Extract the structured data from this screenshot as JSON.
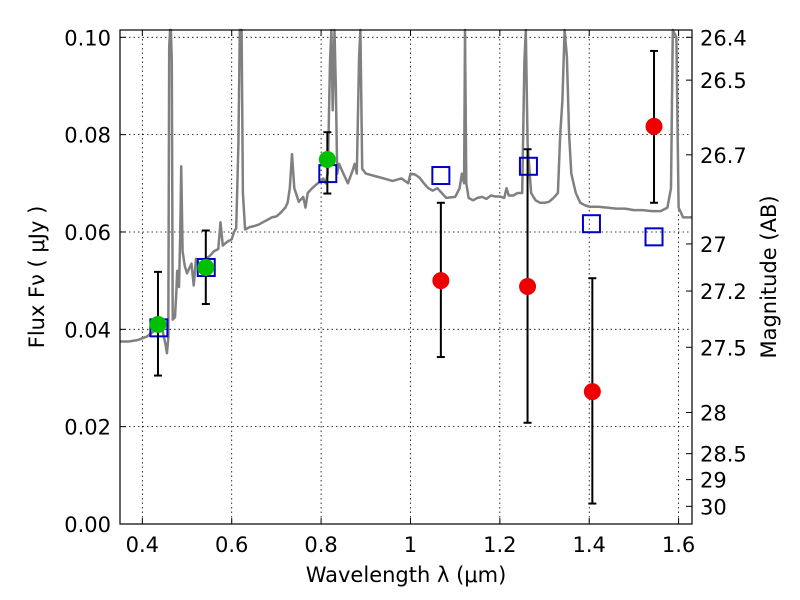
{
  "chart_data": {
    "type": "scatter",
    "xlabel": "Wavelength  λ (μm)",
    "ylabel": "Flux  Fν  ( μJy )",
    "y2label": "Magnitude (AB)",
    "xlim": [
      0.35,
      1.63
    ],
    "ylim": [
      0.0,
      0.1015
    ],
    "grid": true,
    "x_ticks": [
      0.4,
      0.6,
      0.8,
      1.0,
      1.2,
      1.4,
      1.6
    ],
    "x_tick_labels": [
      "0.4",
      "0.6",
      "0.8",
      "1",
      "1.2",
      "1.4",
      "1.6"
    ],
    "y_ticks": [
      0.0,
      0.02,
      0.04,
      0.06,
      0.08,
      0.1
    ],
    "y_tick_labels": [
      "0.00",
      "0.02",
      "0.04",
      "0.06",
      "0.08",
      "0.10"
    ],
    "y2_tick_values": [
      26.4,
      26.5,
      26.7,
      27,
      27.2,
      27.5,
      28,
      28.5,
      29,
      30
    ],
    "y2_tick_labels": [
      "26.4",
      "26.5",
      "26.7",
      "27",
      "27.2",
      "27.5",
      "28",
      "28.5",
      "29",
      "30"
    ],
    "colors": {
      "spectrum": "#808080",
      "detections": "#00c000",
      "upper_points": "#ee0000",
      "model_boxes": "#0000cc",
      "errorbars": "#000000"
    },
    "series": [
      {
        "kind": "line",
        "points": [
          [
            0.35,
            0.0375
          ],
          [
            0.37,
            0.0375
          ],
          [
            0.39,
            0.0378
          ],
          [
            0.41,
            0.0385
          ],
          [
            0.42,
            0.0392
          ],
          [
            0.43,
            0.04
          ],
          [
            0.44,
            0.0402
          ],
          [
            0.445,
            0.0398
          ],
          [
            0.452,
            0.0368
          ],
          [
            0.455,
            0.0351
          ],
          [
            0.458,
            0.0382
          ],
          [
            0.46,
            0.098
          ],
          [
            0.462,
            0.1015
          ],
          [
            0.464,
            0.1015
          ],
          [
            0.466,
            0.095
          ],
          [
            0.468,
            0.042
          ],
          [
            0.473,
            0.0425
          ],
          [
            0.476,
            0.0475
          ],
          [
            0.478,
            0.052
          ],
          [
            0.482,
            0.0487
          ],
          [
            0.485,
            0.06
          ],
          [
            0.487,
            0.0735
          ],
          [
            0.49,
            0.056
          ],
          [
            0.495,
            0.053
          ],
          [
            0.5,
            0.0515
          ],
          [
            0.51,
            0.0535
          ],
          [
            0.515,
            0.049
          ],
          [
            0.52,
            0.0545
          ],
          [
            0.53,
            0.053
          ],
          [
            0.54,
            0.0545
          ],
          [
            0.55,
            0.055
          ],
          [
            0.56,
            0.056
          ],
          [
            0.57,
            0.0565
          ],
          [
            0.575,
            0.062
          ],
          [
            0.58,
            0.0572
          ],
          [
            0.59,
            0.058
          ],
          [
            0.6,
            0.0585
          ],
          [
            0.605,
            0.06
          ],
          [
            0.61,
            0.0608
          ],
          [
            0.615,
            0.078
          ],
          [
            0.618,
            0.1015
          ],
          [
            0.622,
            0.1015
          ],
          [
            0.625,
            0.068
          ],
          [
            0.63,
            0.0605
          ],
          [
            0.64,
            0.061
          ],
          [
            0.65,
            0.0612
          ],
          [
            0.66,
            0.0615
          ],
          [
            0.67,
            0.062
          ],
          [
            0.68,
            0.0625
          ],
          [
            0.69,
            0.063
          ],
          [
            0.7,
            0.0632
          ],
          [
            0.71,
            0.064
          ],
          [
            0.72,
            0.065
          ],
          [
            0.725,
            0.066
          ],
          [
            0.73,
            0.069
          ],
          [
            0.735,
            0.076
          ],
          [
            0.74,
            0.069
          ],
          [
            0.75,
            0.0662
          ],
          [
            0.76,
            0.0672
          ],
          [
            0.765,
            0.065
          ],
          [
            0.77,
            0.068
          ],
          [
            0.78,
            0.069
          ],
          [
            0.79,
            0.0698
          ],
          [
            0.8,
            0.0705
          ],
          [
            0.805,
            0.071
          ],
          [
            0.81,
            0.07
          ],
          [
            0.815,
            0.072
          ],
          [
            0.82,
            0.095
          ],
          [
            0.823,
            0.1015
          ],
          [
            0.826,
            0.085
          ],
          [
            0.83,
            0.1015
          ],
          [
            0.833,
            0.09
          ],
          [
            0.836,
            0.072
          ],
          [
            0.84,
            0.074
          ],
          [
            0.85,
            0.072
          ],
          [
            0.86,
            0.07
          ],
          [
            0.87,
            0.0725
          ],
          [
            0.875,
            0.074
          ],
          [
            0.88,
            0.072
          ],
          [
            0.885,
            0.096
          ],
          [
            0.888,
            0.1015
          ],
          [
            0.892,
            0.073
          ],
          [
            0.9,
            0.072
          ],
          [
            0.92,
            0.0715
          ],
          [
            0.94,
            0.071
          ],
          [
            0.96,
            0.0705
          ],
          [
            0.98,
            0.071
          ],
          [
            0.995,
            0.07
          ],
          [
            1.0,
            0.072
          ],
          [
            1.01,
            0.0718
          ],
          [
            1.02,
            0.0712
          ],
          [
            1.03,
            0.07
          ],
          [
            1.04,
            0.069
          ],
          [
            1.05,
            0.0685
          ],
          [
            1.06,
            0.069
          ],
          [
            1.07,
            0.068
          ],
          [
            1.08,
            0.067
          ],
          [
            1.1,
            0.0672
          ],
          [
            1.11,
            0.069
          ],
          [
            1.115,
            0.072
          ],
          [
            1.12,
            0.07
          ],
          [
            1.122,
            0.1015
          ],
          [
            1.125,
            0.07
          ],
          [
            1.13,
            0.067
          ],
          [
            1.14,
            0.0665
          ],
          [
            1.15,
            0.067
          ],
          [
            1.16,
            0.0672
          ],
          [
            1.17,
            0.0668
          ],
          [
            1.18,
            0.0675
          ],
          [
            1.19,
            0.0673
          ],
          [
            1.2,
            0.0673
          ],
          [
            1.21,
            0.067
          ],
          [
            1.215,
            0.069
          ],
          [
            1.22,
            0.0675
          ],
          [
            1.23,
            0.0675
          ],
          [
            1.24,
            0.068
          ],
          [
            1.25,
            0.068
          ],
          [
            1.255,
            0.095
          ],
          [
            1.258,
            0.1015
          ],
          [
            1.262,
            0.078
          ],
          [
            1.27,
            0.068
          ],
          [
            1.28,
            0.0665
          ],
          [
            1.29,
            0.066
          ],
          [
            1.3,
            0.066
          ],
          [
            1.31,
            0.0662
          ],
          [
            1.32,
            0.067
          ],
          [
            1.33,
            0.068
          ],
          [
            1.335,
            0.08
          ],
          [
            1.34,
            0.087
          ],
          [
            1.345,
            0.1015
          ],
          [
            1.35,
            0.096
          ],
          [
            1.355,
            0.08
          ],
          [
            1.36,
            0.072
          ],
          [
            1.37,
            0.068
          ],
          [
            1.38,
            0.066
          ],
          [
            1.39,
            0.0655
          ],
          [
            1.4,
            0.0652
          ],
          [
            1.42,
            0.0652
          ],
          [
            1.44,
            0.065
          ],
          [
            1.46,
            0.0648
          ],
          [
            1.48,
            0.0648
          ],
          [
            1.5,
            0.0645
          ],
          [
            1.52,
            0.0645
          ],
          [
            1.54,
            0.0643
          ],
          [
            1.56,
            0.0643
          ],
          [
            1.575,
            0.065
          ],
          [
            1.583,
            0.069
          ],
          [
            1.587,
            0.1015
          ],
          [
            1.595,
            0.1
          ],
          [
            1.6,
            0.065
          ],
          [
            1.61,
            0.063
          ],
          [
            1.63,
            0.063
          ]
        ]
      },
      {
        "kind": "points",
        "points": [
          {
            "x": 0.435,
            "y": 0.041,
            "ylo": 0.0305,
            "yhi": 0.0518
          },
          {
            "x": 0.542,
            "y": 0.0527,
            "ylo": 0.0452,
            "yhi": 0.0603
          },
          {
            "x": 0.814,
            "y": 0.0749,
            "ylo": 0.0679,
            "yhi": 0.0805
          }
        ]
      },
      {
        "kind": "points",
        "points": [
          {
            "x": 1.068,
            "y": 0.05,
            "ylo": 0.0343,
            "yhi": 0.066
          },
          {
            "x": 1.262,
            "y": 0.0488,
            "ylo": 0.0208,
            "yhi": 0.077
          },
          {
            "x": 1.407,
            "y": 0.0272,
            "ylo": 0.0042,
            "yhi": 0.0505
          },
          {
            "x": 1.545,
            "y": 0.0817,
            "ylo": 0.066,
            "yhi": 0.0972
          }
        ]
      },
      {
        "kind": "boxes",
        "points": [
          {
            "x": 0.437,
            "y": 0.0403
          },
          {
            "x": 0.543,
            "y": 0.0527
          },
          {
            "x": 0.815,
            "y": 0.072
          },
          {
            "x": 1.068,
            "y": 0.0716
          },
          {
            "x": 1.264,
            "y": 0.0735
          },
          {
            "x": 1.405,
            "y": 0.0617
          },
          {
            "x": 1.545,
            "y": 0.059
          }
        ]
      }
    ]
  }
}
